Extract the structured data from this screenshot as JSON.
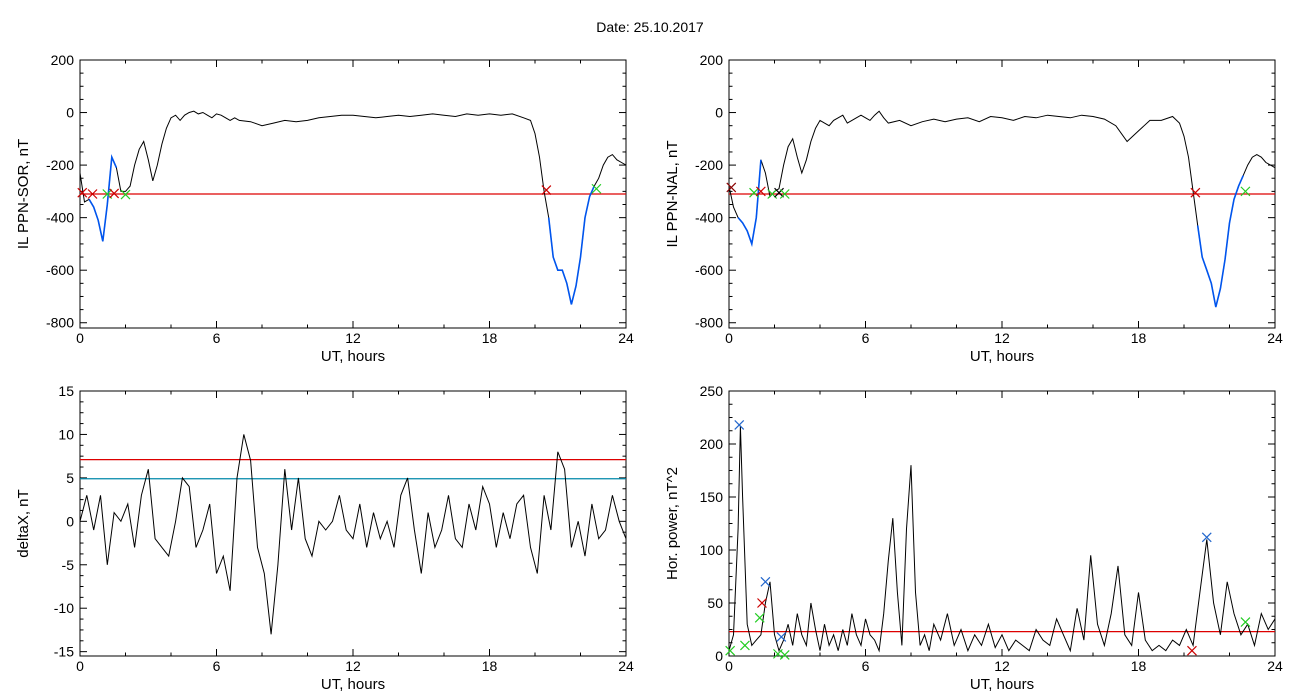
{
  "page": {
    "title": "Date:  25.10.2017"
  },
  "chart_data": [
    {
      "id": "sor",
      "type": "line",
      "xlabel": "UT, hours",
      "ylabel": "IL PPN-SOR, nT",
      "xlim": [
        0,
        24
      ],
      "ylim": [
        -820,
        200
      ],
      "xticks": [
        0,
        6,
        12,
        18,
        24
      ],
      "yticks": [
        200,
        0,
        -200,
        -400,
        -600,
        -800
      ],
      "grid": false,
      "series": [
        {
          "color": "#000000",
          "x": [
            0.0,
            0.2,
            0.4,
            0.6,
            0.8,
            1.0,
            1.2,
            1.4,
            1.6,
            1.8,
            2.0,
            2.2,
            2.4,
            2.6,
            2.8,
            3.0,
            3.2,
            3.4,
            3.6,
            3.8,
            4.0,
            4.2,
            4.4,
            4.6,
            4.8,
            5.0,
            5.2,
            5.4,
            5.6,
            5.8,
            6.0,
            6.2,
            6.4,
            6.6,
            6.8,
            7.0,
            7.5,
            8.0,
            8.5,
            9.0,
            9.5,
            10.0,
            10.5,
            11.0,
            11.5,
            12.0,
            12.5,
            13.0,
            13.5,
            14.0,
            14.5,
            15.0,
            15.5,
            16.0,
            16.5,
            17.0,
            17.5,
            18.0,
            18.5,
            19.0,
            19.5,
            19.8,
            20.0,
            20.2,
            20.4,
            20.6,
            20.8,
            21.0,
            21.2,
            21.4,
            21.6,
            21.8,
            22.0,
            22.2,
            22.4,
            22.6,
            22.8,
            23.0,
            23.2,
            23.4,
            23.6,
            23.8,
            24.0
          ],
          "values": [
            -230,
            -340,
            -330,
            -360,
            -410,
            -490,
            -350,
            -170,
            -210,
            -300,
            -300,
            -280,
            -200,
            -140,
            -110,
            -180,
            -260,
            -200,
            -120,
            -60,
            -20,
            -10,
            -30,
            -10,
            0,
            5,
            -5,
            0,
            -10,
            -20,
            -5,
            -10,
            -20,
            -30,
            -20,
            -30,
            -35,
            -50,
            -40,
            -30,
            -35,
            -30,
            -20,
            -15,
            -10,
            -10,
            -15,
            -20,
            -15,
            -10,
            -15,
            -10,
            -5,
            -10,
            -15,
            -5,
            -10,
            -5,
            -10,
            -5,
            -20,
            -30,
            -80,
            -170,
            -300,
            -400,
            -550,
            -600,
            -600,
            -650,
            -730,
            -660,
            -550,
            -400,
            -320,
            -280,
            -250,
            -200,
            -170,
            -160,
            -180,
            -190,
            -200
          ]
        }
      ],
      "highlight": {
        "color": "#0055ee",
        "ranges": [
          [
            0.3,
            1.7
          ],
          [
            20.5,
            22.7
          ]
        ]
      },
      "hlines": [
        {
          "y": -310,
          "color": "#dd0000"
        }
      ],
      "markers": [
        {
          "x": 0.1,
          "y": -305,
          "color": "#cc0000"
        },
        {
          "x": 0.55,
          "y": -310,
          "color": "#cc0000"
        },
        {
          "x": 1.2,
          "y": -310,
          "color": "#22cc22"
        },
        {
          "x": 1.5,
          "y": -308,
          "color": "#cc0000"
        },
        {
          "x": 2.0,
          "y": -312,
          "color": "#22cc22"
        },
        {
          "x": 20.5,
          "y": -295,
          "color": "#cc0000"
        },
        {
          "x": 22.7,
          "y": -290,
          "color": "#22cc22"
        }
      ]
    },
    {
      "id": "nal",
      "type": "line",
      "xlabel": "UT, hours",
      "ylabel": "IL PPN-NAL, nT",
      "xlim": [
        0,
        24
      ],
      "ylim": [
        -820,
        200
      ],
      "xticks": [
        0,
        6,
        12,
        18,
        24
      ],
      "yticks": [
        200,
        0,
        -200,
        -400,
        -600,
        -800
      ],
      "grid": false,
      "series": [
        {
          "color": "#000000",
          "x": [
            0.0,
            0.2,
            0.4,
            0.6,
            0.8,
            1.0,
            1.2,
            1.4,
            1.6,
            1.8,
            2.0,
            2.2,
            2.4,
            2.6,
            2.8,
            3.0,
            3.2,
            3.4,
            3.6,
            3.8,
            4.0,
            4.2,
            4.4,
            4.6,
            4.8,
            5.0,
            5.2,
            5.4,
            5.6,
            5.8,
            6.0,
            6.2,
            6.4,
            6.6,
            6.8,
            7.0,
            7.5,
            8.0,
            8.5,
            9.0,
            9.5,
            10.0,
            10.5,
            11.0,
            11.5,
            12.0,
            12.5,
            13.0,
            13.5,
            14.0,
            14.5,
            15.0,
            15.5,
            16.0,
            16.5,
            17.0,
            17.5,
            18.0,
            18.5,
            19.0,
            19.5,
            19.8,
            20.0,
            20.2,
            20.4,
            20.6,
            20.8,
            21.0,
            21.2,
            21.4,
            21.6,
            21.8,
            22.0,
            22.2,
            22.4,
            22.6,
            22.8,
            23.0,
            23.2,
            23.4,
            23.6,
            23.8,
            24.0
          ],
          "values": [
            -280,
            -360,
            -400,
            -420,
            -450,
            -500,
            -400,
            -180,
            -230,
            -320,
            -300,
            -290,
            -200,
            -130,
            -100,
            -170,
            -230,
            -180,
            -110,
            -60,
            -30,
            -40,
            -50,
            -30,
            -20,
            -10,
            -40,
            -30,
            -20,
            -10,
            -20,
            -30,
            -10,
            5,
            -20,
            -40,
            -30,
            -50,
            -35,
            -25,
            -35,
            -25,
            -20,
            -35,
            -15,
            -20,
            -30,
            -15,
            -20,
            -10,
            -15,
            -20,
            -10,
            -15,
            -25,
            -50,
            -110,
            -70,
            -30,
            -30,
            -15,
            -40,
            -90,
            -170,
            -300,
            -430,
            -550,
            -600,
            -650,
            -740,
            -670,
            -560,
            -420,
            -330,
            -280,
            -240,
            -200,
            -170,
            -160,
            -170,
            -190,
            -200,
            -210
          ]
        }
      ],
      "highlight": {
        "color": "#0055ee",
        "ranges": [
          [
            0.3,
            1.5
          ],
          [
            20.5,
            22.7
          ]
        ]
      },
      "hlines": [
        {
          "y": -310,
          "color": "#dd0000"
        }
      ],
      "markers": [
        {
          "x": 0.1,
          "y": -285,
          "color": "#880000"
        },
        {
          "x": 1.1,
          "y": -305,
          "color": "#22cc22"
        },
        {
          "x": 1.4,
          "y": -300,
          "color": "#cc0000"
        },
        {
          "x": 1.9,
          "y": -310,
          "color": "#22cc22"
        },
        {
          "x": 2.2,
          "y": -305,
          "color": "#000000"
        },
        {
          "x": 2.45,
          "y": -310,
          "color": "#22cc22"
        },
        {
          "x": 20.5,
          "y": -305,
          "color": "#cc0000"
        },
        {
          "x": 22.7,
          "y": -300,
          "color": "#22cc22"
        }
      ]
    },
    {
      "id": "deltax",
      "type": "line",
      "xlabel": "UT, hours",
      "ylabel": "deltaX, nT",
      "xlim": [
        0,
        24
      ],
      "ylim": [
        -15.5,
        15
      ],
      "xticks": [
        0,
        6,
        12,
        18,
        24
      ],
      "yticks": [
        15,
        10,
        5,
        0,
        -5,
        -10,
        -15
      ],
      "grid": false,
      "series": [
        {
          "color": "#000000",
          "x": [
            0.0,
            0.3,
            0.6,
            0.9,
            1.2,
            1.5,
            1.8,
            2.1,
            2.4,
            2.7,
            3.0,
            3.3,
            3.6,
            3.9,
            4.2,
            4.5,
            4.8,
            5.1,
            5.4,
            5.7,
            6.0,
            6.3,
            6.6,
            6.9,
            7.2,
            7.5,
            7.8,
            8.1,
            8.4,
            8.7,
            9.0,
            9.3,
            9.6,
            9.9,
            10.2,
            10.5,
            10.8,
            11.1,
            11.4,
            11.7,
            12.0,
            12.3,
            12.6,
            12.9,
            13.2,
            13.5,
            13.8,
            14.1,
            14.4,
            14.7,
            15.0,
            15.3,
            15.6,
            15.9,
            16.2,
            16.5,
            16.8,
            17.1,
            17.4,
            17.7,
            18.0,
            18.3,
            18.6,
            18.9,
            19.2,
            19.5,
            19.8,
            20.1,
            20.4,
            20.7,
            21.0,
            21.3,
            21.6,
            21.9,
            22.2,
            22.5,
            22.8,
            23.1,
            23.4,
            23.7,
            24.0
          ],
          "values": [
            0,
            3,
            -1,
            3,
            -5,
            1,
            0,
            2,
            -3,
            3,
            6,
            -2,
            -3,
            -4,
            0,
            5,
            4,
            -3,
            -1,
            2,
            -6,
            -4,
            -8,
            5,
            10,
            7,
            -3,
            -6,
            -13,
            -5,
            6,
            -1,
            5,
            -2,
            -4,
            0,
            -1,
            0,
            3,
            -1,
            -2,
            2,
            -3,
            1,
            -2,
            0,
            -3,
            3,
            5,
            -1,
            -6,
            1,
            -3,
            -1,
            3,
            -2,
            -3,
            2,
            -1,
            4,
            2,
            -3,
            1,
            -2,
            2,
            3,
            -3,
            -6,
            3,
            -1,
            8,
            6,
            -3,
            0,
            -4,
            2,
            -2,
            -1,
            3,
            0,
            -2
          ]
        }
      ],
      "hlines": [
        {
          "y": 7.1,
          "color": "#dd0000"
        },
        {
          "y": 4.9,
          "color": "#0088aa"
        }
      ],
      "markers": []
    },
    {
      "id": "power",
      "type": "line",
      "xlabel": "UT, hours",
      "ylabel": "Hor. power, nT^2",
      "xlim": [
        0,
        24
      ],
      "ylim": [
        0,
        250
      ],
      "xticks": [
        0,
        6,
        12,
        18,
        24
      ],
      "yticks": [
        250,
        200,
        150,
        100,
        50,
        0
      ],
      "grid": false,
      "series": [
        {
          "color": "#000000",
          "x": [
            0.0,
            0.2,
            0.4,
            0.5,
            0.6,
            0.8,
            1.0,
            1.2,
            1.4,
            1.6,
            1.8,
            2.0,
            2.2,
            2.4,
            2.6,
            2.8,
            3.0,
            3.2,
            3.4,
            3.6,
            3.8,
            4.0,
            4.2,
            4.4,
            4.6,
            4.8,
            5.0,
            5.2,
            5.4,
            5.6,
            5.8,
            6.0,
            6.2,
            6.4,
            6.6,
            6.8,
            7.0,
            7.2,
            7.4,
            7.6,
            7.8,
            8.0,
            8.2,
            8.4,
            8.6,
            8.8,
            9.0,
            9.3,
            9.6,
            9.9,
            10.2,
            10.5,
            10.8,
            11.1,
            11.4,
            11.7,
            12.0,
            12.3,
            12.6,
            12.9,
            13.2,
            13.5,
            13.8,
            14.1,
            14.4,
            14.7,
            15.0,
            15.3,
            15.6,
            15.9,
            16.2,
            16.5,
            16.8,
            17.1,
            17.4,
            17.7,
            18.0,
            18.3,
            18.6,
            18.9,
            19.2,
            19.5,
            19.8,
            20.1,
            20.4,
            20.7,
            21.0,
            21.3,
            21.6,
            21.9,
            22.2,
            22.5,
            22.8,
            23.1,
            23.4,
            23.7,
            24.0
          ],
          "values": [
            5,
            20,
            120,
            217,
            150,
            30,
            10,
            15,
            20,
            50,
            70,
            20,
            5,
            15,
            30,
            10,
            40,
            20,
            10,
            50,
            25,
            5,
            30,
            10,
            20,
            5,
            25,
            10,
            40,
            20,
            10,
            35,
            20,
            15,
            5,
            40,
            90,
            130,
            60,
            10,
            120,
            180,
            60,
            10,
            20,
            5,
            30,
            15,
            40,
            10,
            25,
            5,
            20,
            10,
            30,
            8,
            20,
            5,
            15,
            10,
            5,
            25,
            15,
            10,
            35,
            20,
            5,
            45,
            15,
            95,
            30,
            10,
            40,
            85,
            20,
            10,
            60,
            15,
            5,
            10,
            5,
            15,
            10,
            25,
            10,
            60,
            110,
            50,
            20,
            70,
            40,
            20,
            30,
            10,
            40,
            25,
            35
          ]
        }
      ],
      "hlines": [
        {
          "y": 23,
          "color": "#dd0000"
        }
      ],
      "markers": [
        {
          "x": 0.05,
          "y": 5,
          "color": "#22cc22"
        },
        {
          "x": 0.45,
          "y": 218,
          "color": "#2266cc"
        },
        {
          "x": 0.7,
          "y": 10,
          "color": "#22cc22"
        },
        {
          "x": 1.35,
          "y": 36,
          "color": "#22cc22"
        },
        {
          "x": 1.45,
          "y": 50,
          "color": "#cc0000"
        },
        {
          "x": 1.6,
          "y": 70,
          "color": "#2266cc"
        },
        {
          "x": 2.15,
          "y": 2,
          "color": "#22cc22"
        },
        {
          "x": 2.3,
          "y": 18,
          "color": "#2266cc"
        },
        {
          "x": 2.45,
          "y": 1,
          "color": "#22cc22"
        },
        {
          "x": 20.35,
          "y": 5,
          "color": "#cc0000"
        },
        {
          "x": 21.0,
          "y": 112,
          "color": "#2266cc"
        },
        {
          "x": 22.7,
          "y": 32,
          "color": "#22cc22"
        }
      ]
    }
  ]
}
